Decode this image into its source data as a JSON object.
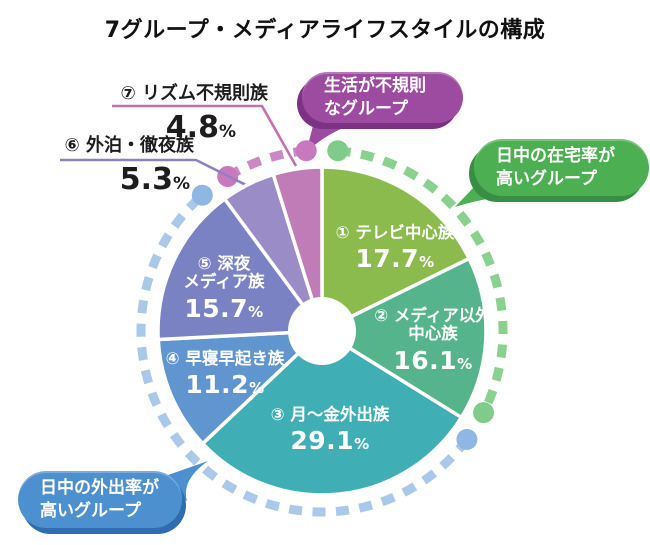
{
  "title": "7グループ・メディアライフスタイルの構成",
  "unit": "%",
  "chart_data": {
    "type": "pie",
    "title": "7グループ・メディアライフスタイルの構成",
    "donut": true,
    "start_angle_deg": 0,
    "direction": "clockwise",
    "slices": [
      {
        "no": "①",
        "name": "テレビ中心族",
        "label_lines": [
          "① テレビ中心族"
        ],
        "value": 17.7,
        "color": "#8abb4c"
      },
      {
        "no": "②",
        "name": "メディア以外中心族",
        "label_lines": [
          "② メディア以外",
          "中心族"
        ],
        "value": 16.1,
        "color": "#55b48c"
      },
      {
        "no": "③",
        "name": "月〜金外出族",
        "label_lines": [
          "③ 月〜金外出族"
        ],
        "value": 29.1,
        "color": "#3fafb5"
      },
      {
        "no": "④",
        "name": "早寝早起き族",
        "label_lines": [
          "④ 早寝早起き族"
        ],
        "value": 11.2,
        "color": "#6095d0"
      },
      {
        "no": "⑤",
        "name": "深夜メディア族",
        "label_lines": [
          "⑤ 深夜",
          "メディア族"
        ],
        "value": 15.7,
        "color": "#7a82c4"
      },
      {
        "no": "⑥",
        "name": "外泊・徹夜族",
        "label_lines": [
          "⑥ 外泊・徹夜族"
        ],
        "value": 5.3,
        "color": "#9a8cc6",
        "callout_color": "#8d82c0"
      },
      {
        "no": "⑦",
        "name": "リズム不規則族",
        "label_lines": [
          "⑦ リズム不規則族"
        ],
        "value": 4.8,
        "color": "#bf7cb6",
        "callout_color": "#c470ae"
      }
    ],
    "groups": [
      {
        "name": "日中の在宅率が高いグループ",
        "label_lines": [
          "日中の在宅率が",
          "高いグループ"
        ],
        "slice_indices": [
          0,
          1
        ],
        "arc_color": "#8ad08f",
        "dot_color": "#7ecb8a",
        "bubble_color": "#4caf52",
        "bubble_shadow": "#388e44"
      },
      {
        "name": "日中の外出率が高いグループ",
        "label_lines": [
          "日中の外出率が",
          "高いグループ"
        ],
        "slice_indices": [
          2,
          3,
          4
        ],
        "arc_color": "#a9c8ea",
        "dot_color": "#8fb7e4",
        "bubble_color": "#4c90d0",
        "bubble_shadow": "#2f6cb0"
      },
      {
        "name": "生活が不規則なグループ",
        "label_lines": [
          "生活が不規則",
          "なグループ"
        ],
        "slice_indices": [
          5,
          6
        ],
        "arc_color": "#cb89c4",
        "dot_color": "#c878bd",
        "bubble_color": "#9c4ba1",
        "bubble_shadow": "#7c3283"
      }
    ]
  }
}
